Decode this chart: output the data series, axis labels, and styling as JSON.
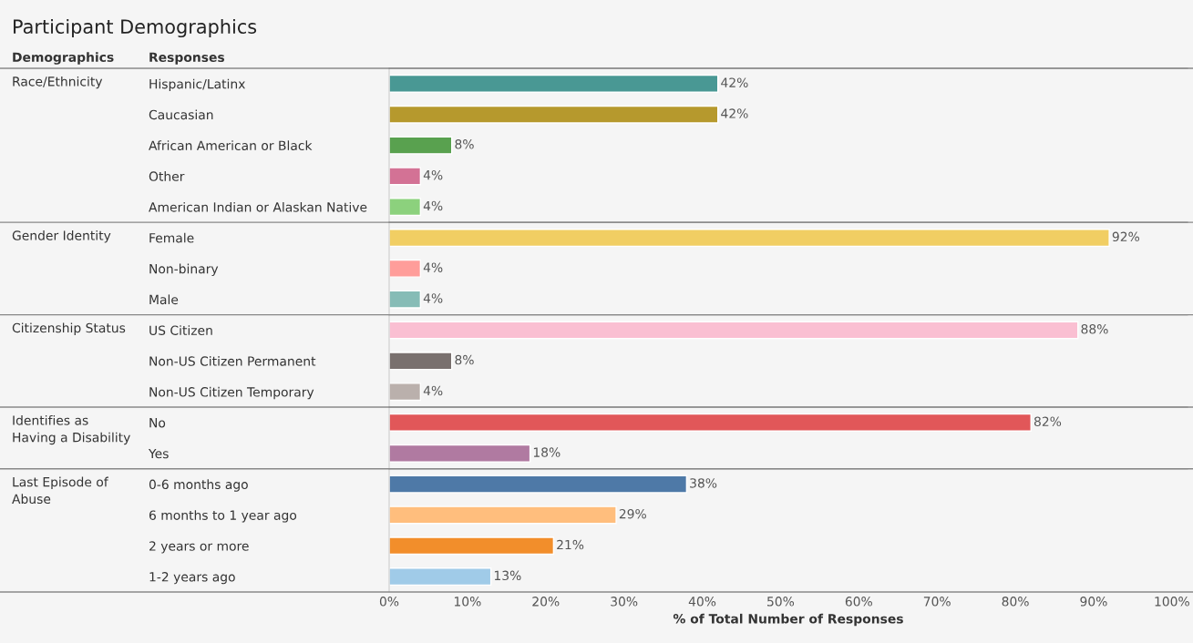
{
  "chart_data": [
    {
      "type": "bar",
      "orientation": "horizontal",
      "title": "Race/Ethnicity",
      "ylabel": "Responses",
      "annotations": [
        "Participant Demographics",
        "Demographics"
      ],
      "categories": [
        "Hispanic/Latinx",
        "Caucasian",
        "African American or Black",
        "Other",
        "American Indian or Alaskan Native"
      ],
      "values": [
        42,
        42,
        8,
        4,
        4
      ],
      "value_labels": [
        "42%",
        "42%",
        "8%",
        "4%",
        "4%"
      ],
      "colors": [
        "#499894",
        "#b6992d",
        "#59a14f",
        "#d37295",
        "#8cd17d"
      ],
      "xlim": [
        0,
        102
      ],
      "tick_labels": "y",
      "grid": false
    },
    {
      "type": "bar",
      "orientation": "horizontal",
      "title": "Gender Identity",
      "categories": [
        "Female",
        "Non-binary",
        "Male"
      ],
      "values": [
        92,
        4,
        4
      ],
      "value_labels": [
        "92%",
        "4%",
        "4%"
      ],
      "colors": [
        "#f1ce63",
        "#ff9d9a",
        "#86bcb6"
      ],
      "xlim": [
        0,
        102
      ],
      "tick_labels": "y",
      "grid": false
    },
    {
      "type": "bar",
      "orientation": "horizontal",
      "title": "Citizenship Status",
      "categories": [
        "US Citizen",
        "Non-US Citizen Permanent",
        "Non-US Citizen Temporary"
      ],
      "values": [
        88,
        8,
        4
      ],
      "value_labels": [
        "88%",
        "8%",
        "4%"
      ],
      "colors": [
        "#fabfd2",
        "#79706e",
        "#bab0ac"
      ],
      "xlim": [
        0,
        102
      ],
      "tick_labels": "y",
      "grid": false
    },
    {
      "type": "bar",
      "orientation": "horizontal",
      "title": "Identifies as\nHaving a Disability",
      "categories": [
        "No",
        "Yes"
      ],
      "values": [
        82,
        18
      ],
      "value_labels": [
        "82%",
        "18%"
      ],
      "colors": [
        "#e15759",
        "#b07aa1"
      ],
      "xlim": [
        0,
        102
      ],
      "tick_labels": "y",
      "grid": false
    },
    {
      "type": "bar",
      "orientation": "horizontal",
      "title": "Last Episode of\nAbuse",
      "xlabel": "% of Total Number of Responses",
      "categories": [
        "0-6 months ago",
        "6 months to 1 year ago",
        "2 years or more",
        "1-2 years ago"
      ],
      "values": [
        38,
        29,
        21,
        13
      ],
      "value_labels": [
        "38%",
        "29%",
        "21%",
        "13%"
      ],
      "colors": [
        "#4e79a7",
        "#ffbe7d",
        "#f28e2b",
        "#a0cbe8"
      ],
      "xlim": [
        0,
        102
      ],
      "xticks": [
        {
          "value": 0,
          "label": "0%"
        },
        {
          "value": 10,
          "label": "10%"
        },
        {
          "value": 20,
          "label": "20%"
        },
        {
          "value": 30,
          "label": "30%"
        },
        {
          "value": 40,
          "label": "40%"
        },
        {
          "value": 50,
          "label": "50%"
        },
        {
          "value": 60,
          "label": "60%"
        },
        {
          "value": 70,
          "label": "70%"
        },
        {
          "value": 80,
          "label": "80%"
        },
        {
          "value": 90,
          "label": "90%"
        },
        {
          "value": 100,
          "label": "100%"
        }
      ],
      "grid": false
    }
  ]
}
